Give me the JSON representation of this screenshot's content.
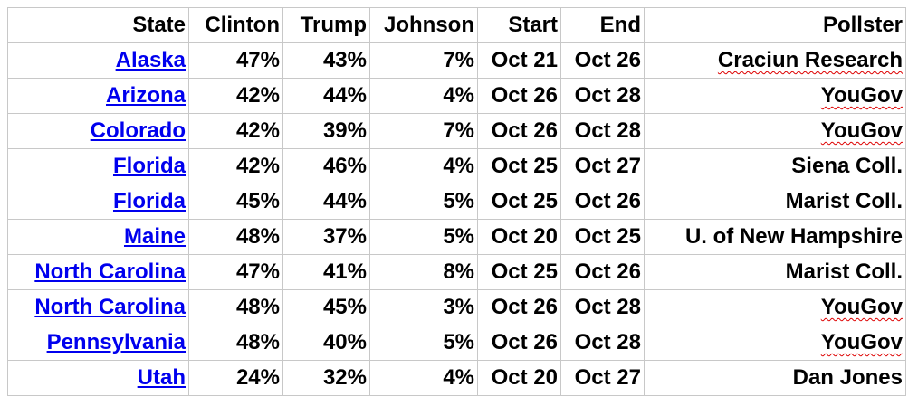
{
  "table": {
    "header": [
      "State",
      "Clinton",
      "Trump",
      "Johnson",
      "Start",
      "End",
      "Pollster"
    ],
    "rows": [
      [
        "Alaska",
        "47%",
        "43%",
        "7%",
        "Oct 21",
        "Oct 26",
        "Craciun Research"
      ],
      [
        "Arizona",
        "42%",
        "44%",
        "4%",
        "Oct 26",
        "Oct 28",
        "YouGov"
      ],
      [
        "Colorado",
        "42%",
        "39%",
        "7%",
        "Oct 26",
        "Oct 28",
        "YouGov"
      ],
      [
        "Florida",
        "42%",
        "46%",
        "4%",
        "Oct 25",
        "Oct 27",
        "Siena Coll."
      ],
      [
        "Florida",
        "45%",
        "44%",
        "5%",
        "Oct 25",
        "Oct 26",
        "Marist Coll."
      ],
      [
        "Maine",
        "48%",
        "37%",
        "5%",
        "Oct 20",
        "Oct 25",
        "U. of New Hampshire"
      ],
      [
        "North Carolina",
        "47%",
        "41%",
        "8%",
        "Oct 25",
        "Oct 26",
        "Marist Coll."
      ],
      [
        "North Carolina",
        "48%",
        "45%",
        "3%",
        "Oct 26",
        "Oct 28",
        "YouGov"
      ],
      [
        "Pennsylvania",
        "48%",
        "40%",
        "5%",
        "Oct 26",
        "Oct 28",
        "YouGov"
      ],
      [
        "Utah",
        "24%",
        "32%",
        "4%",
        "Oct 20",
        "Oct 27",
        "Dan Jones"
      ]
    ]
  }
}
